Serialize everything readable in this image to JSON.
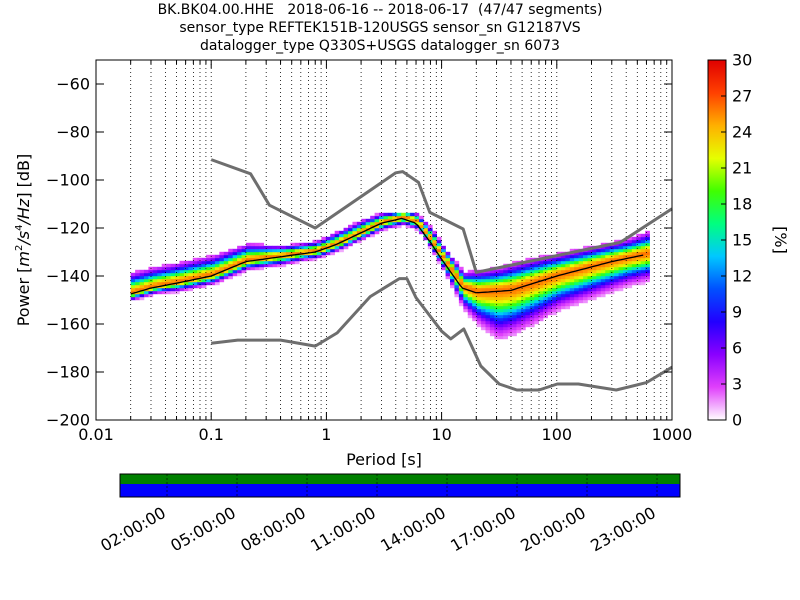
{
  "chart_data": {
    "type": "heatmap",
    "title_lines": [
      "BK.BK04.00.HHE   2018-06-16 -- 2018-06-17  (47/47 segments)",
      "sensor_type REFTEK151B-120USGS sensor_sn G12187VS",
      "datalogger_type Q330S+USGS datalogger_sn 6073"
    ],
    "xlabel": "Period [s]",
    "ylabel": "Power [m²/s⁴/Hz] [dB]",
    "ylabel_parts": {
      "prefix": "Power [",
      "m": "m",
      "m_sup": "2",
      "s4": "/s",
      "s4_sup": "4",
      "hz": "/Hz",
      "suffix": "] [dB]"
    },
    "xscale": "log",
    "xlim": [
      0.01,
      1000
    ],
    "ylim": [
      -200,
      -50
    ],
    "xticks": [
      {
        "value": 0.01,
        "label": "0.01"
      },
      {
        "value": 0.1,
        "label": "0.1"
      },
      {
        "value": 1,
        "label": "1"
      },
      {
        "value": 10,
        "label": "10"
      },
      {
        "value": 100,
        "label": "100"
      },
      {
        "value": 1000,
        "label": "1000"
      }
    ],
    "yticks": [
      {
        "value": -60,
        "label": "−60"
      },
      {
        "value": -80,
        "label": "−80"
      },
      {
        "value": -100,
        "label": "−100"
      },
      {
        "value": -120,
        "label": "−120"
      },
      {
        "value": -140,
        "label": "−140"
      },
      {
        "value": -160,
        "label": "−160"
      },
      {
        "value": -180,
        "label": "−180"
      },
      {
        "value": -200,
        "label": "−200"
      }
    ],
    "grid": "dotted-vertical",
    "colorbar": {
      "label": "[%]",
      "min": 0,
      "max": 30,
      "ticks": [
        {
          "value": 0,
          "label": "0"
        },
        {
          "value": 3,
          "label": "3"
        },
        {
          "value": 6,
          "label": "6"
        },
        {
          "value": 9,
          "label": "9"
        },
        {
          "value": 12,
          "label": "12"
        },
        {
          "value": 15,
          "label": "15"
        },
        {
          "value": 18,
          "label": "18"
        },
        {
          "value": 21,
          "label": "21"
        },
        {
          "value": 24,
          "label": "24"
        },
        {
          "value": 27,
          "label": "27"
        },
        {
          "value": 30,
          "label": "30"
        }
      ],
      "colormap": [
        "#ffffff",
        "#e040fb",
        "#8a00ff",
        "#2200ff",
        "#0050ff",
        "#00c8ff",
        "#00ff80",
        "#40ff00",
        "#e6ff00",
        "#ffb000",
        "#ff4000",
        "#e00000"
      ]
    },
    "noise_model_high": [
      [
        0.1,
        -91.5
      ],
      [
        0.22,
        -97.4
      ],
      [
        0.32,
        -110.5
      ],
      [
        0.8,
        -120
      ],
      [
        4.0,
        -97
      ],
      [
        4.6,
        -96.5
      ],
      [
        6.3,
        -101
      ],
      [
        7.9,
        -113.5
      ],
      [
        15.4,
        -120.4
      ],
      [
        20,
        -138.5
      ],
      [
        354.8,
        -126
      ],
      [
        1000,
        -112
      ]
    ],
    "noise_model_low": [
      [
        0.1,
        -168
      ],
      [
        0.17,
        -166.7
      ],
      [
        0.4,
        -166.7
      ],
      [
        0.8,
        -169.2
      ],
      [
        1.24,
        -163.7
      ],
      [
        2.4,
        -148.6
      ],
      [
        4.3,
        -141.1
      ],
      [
        5.0,
        -141.1
      ],
      [
        6.0,
        -149.0
      ],
      [
        10.0,
        -163.0
      ],
      [
        12.0,
        -166.2
      ],
      [
        15.6,
        -162.1
      ],
      [
        21.9,
        -177.5
      ],
      [
        31.6,
        -185.0
      ],
      [
        45.0,
        -187.5
      ],
      [
        70.0,
        -187.5
      ],
      [
        101.0,
        -185.0
      ],
      [
        154.0,
        -185.0
      ],
      [
        328.0,
        -187.5
      ],
      [
        600.0,
        -184.4
      ],
      [
        1000,
        -178
      ]
    ],
    "median_curve": [
      [
        0.02,
        -147.5
      ],
      [
        0.03,
        -145
      ],
      [
        0.05,
        -143
      ],
      [
        0.1,
        -140
      ],
      [
        0.2,
        -134
      ],
      [
        0.4,
        -132
      ],
      [
        0.8,
        -130
      ],
      [
        1.2,
        -127
      ],
      [
        2,
        -122
      ],
      [
        3,
        -118
      ],
      [
        4.5,
        -116
      ],
      [
        6,
        -118
      ],
      [
        8,
        -126
      ],
      [
        10,
        -133
      ],
      [
        15,
        -145
      ],
      [
        20,
        -147
      ],
      [
        40,
        -146
      ],
      [
        100,
        -140
      ],
      [
        300,
        -134
      ],
      [
        600,
        -131
      ]
    ],
    "psd_band": [
      {
        "period": 0.02,
        "lo": -150,
        "hi": -139
      },
      {
        "period": 0.03,
        "lo": -148,
        "hi": -137
      },
      {
        "period": 0.05,
        "lo": -147,
        "hi": -135
      },
      {
        "period": 0.1,
        "lo": -144,
        "hi": -132
      },
      {
        "period": 0.2,
        "lo": -138,
        "hi": -127
      },
      {
        "period": 0.4,
        "lo": -136,
        "hi": -128
      },
      {
        "period": 0.8,
        "lo": -133,
        "hi": -126
      },
      {
        "period": 1.2,
        "lo": -130,
        "hi": -122
      },
      {
        "period": 2,
        "lo": -125,
        "hi": -117
      },
      {
        "period": 3,
        "lo": -121,
        "hi": -114
      },
      {
        "period": 4.5,
        "lo": -119,
        "hi": -114
      },
      {
        "period": 6,
        "lo": -121,
        "hi": -115
      },
      {
        "period": 8,
        "lo": -130,
        "hi": -121
      },
      {
        "period": 10,
        "lo": -138,
        "hi": -128
      },
      {
        "period": 15,
        "lo": -154,
        "hi": -139
      },
      {
        "period": 20,
        "lo": -160,
        "hi": -138
      },
      {
        "period": 30,
        "lo": -166,
        "hi": -137
      },
      {
        "period": 40,
        "lo": -164,
        "hi": -135
      },
      {
        "period": 60,
        "lo": -160,
        "hi": -133
      },
      {
        "period": 100,
        "lo": -154,
        "hi": -131
      },
      {
        "period": 200,
        "lo": -149,
        "hi": -128
      },
      {
        "period": 400,
        "lo": -144,
        "hi": -125
      },
      {
        "period": 600,
        "lo": -142,
        "hi": -122
      }
    ],
    "coverage": {
      "time_ticks": [
        "02:00:00",
        "05:00:00",
        "08:00:00",
        "11:00:00",
        "14:00:00",
        "17:00:00",
        "20:00:00",
        "23:00:00"
      ],
      "data_color": "#008000",
      "gaps_color": "#0000ff"
    }
  }
}
